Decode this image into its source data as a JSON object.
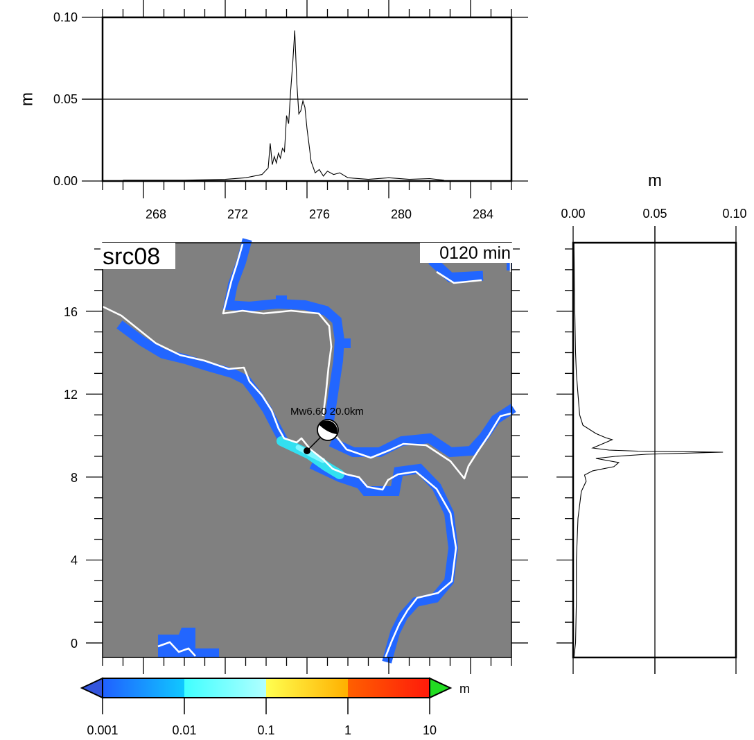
{
  "panel_label": "src08",
  "time_label": "0120 min",
  "epicenter_label": "Mw6.60  20.0km",
  "colorbar": {
    "unit": "m",
    "tick_labels": [
      "0.001",
      "0.01",
      "0.1",
      "1",
      "10"
    ],
    "colors": {
      "under": "#3355dd",
      "over": "#22dd22",
      "bands": [
        "#2060ff",
        "#10c8ff",
        "#40ffff",
        "#b0ffff",
        "#ffff50",
        "#ffb000",
        "#ff6000",
        "#ff1a0a"
      ]
    }
  },
  "map": {
    "background_color": "#808080",
    "coastline_color": "#ffffff",
    "inundation_color": "#2266ff",
    "near_source_color": "#33e0f0",
    "x_tick_labels": [
      "268",
      "272",
      "276",
      "280",
      "284"
    ],
    "y_tick_labels": [
      "16",
      "12",
      "8",
      "4",
      "0"
    ]
  },
  "chart_data": [
    {
      "type": "line",
      "name": "top-profile",
      "ylabel": "m",
      "ylim": [
        0.0,
        0.1
      ],
      "xlim": [
        266,
        286
      ],
      "y_tick_labels": [
        "0.10",
        "0.05",
        "0.00"
      ],
      "x_tick_labels": [
        "268",
        "272",
        "276",
        "280",
        "284"
      ],
      "grid_line": 0.05,
      "x": [
        267,
        270,
        272,
        273,
        273.8,
        274.1,
        274.2,
        274.3,
        274.4,
        274.5,
        274.6,
        274.7,
        274.8,
        274.9,
        275.0,
        275.1,
        275.2,
        275.3,
        275.4,
        275.5,
        275.6,
        275.7,
        275.8,
        275.9,
        276.0,
        276.1,
        276.2,
        276.4,
        276.6,
        276.8,
        277.0,
        277.3,
        277.6,
        278.0,
        279.0,
        280.0,
        281.0,
        282.0,
        282.7
      ],
      "y": [
        0.0005,
        0.0005,
        0.001,
        0.002,
        0.004,
        0.008,
        0.023,
        0.01,
        0.015,
        0.011,
        0.017,
        0.014,
        0.02,
        0.018,
        0.04,
        0.035,
        0.055,
        0.072,
        0.092,
        0.06,
        0.041,
        0.043,
        0.049,
        0.045,
        0.032,
        0.022,
        0.012,
        0.005,
        0.007,
        0.003,
        0.006,
        0.004,
        0.005,
        0.002,
        0.001,
        0.002,
        0.001,
        0.0015,
        0.0005
      ]
    },
    {
      "type": "line",
      "name": "right-profile",
      "xlabel": "m",
      "xlim": [
        0.0,
        0.1
      ],
      "ylim": [
        -0.7,
        19.3
      ],
      "x_tick_labels": [
        "0.00",
        "0.05",
        "0.10"
      ],
      "grid_line": 0.05,
      "y": [
        -0.7,
        0,
        2,
        4,
        6,
        7.3,
        7.8,
        8.1,
        8.3,
        8.5,
        8.7,
        8.9,
        9.0,
        9.1,
        9.2,
        9.25,
        9.3,
        9.4,
        9.6,
        9.8,
        9.9,
        10.1,
        10.5,
        11,
        12,
        13,
        14,
        16,
        19.3
      ],
      "x": [
        0.0005,
        0.0015,
        0.002,
        0.002,
        0.003,
        0.005,
        0.008,
        0.007,
        0.012,
        0.025,
        0.028,
        0.014,
        0.026,
        0.045,
        0.092,
        0.04,
        0.022,
        0.012,
        0.018,
        0.024,
        0.02,
        0.014,
        0.006,
        0.004,
        0.003,
        0.002,
        0.0015,
        0.001,
        0.0005
      ]
    }
  ]
}
